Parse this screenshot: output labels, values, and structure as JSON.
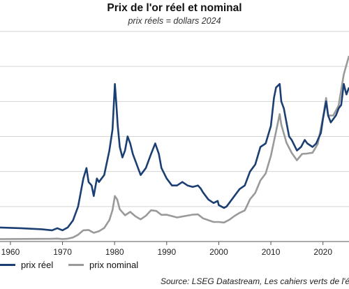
{
  "chart_data": {
    "type": "line",
    "title": "Prix de l'or réel et nominal",
    "subtitle": "prix réels = dollars 2024",
    "source": "Source: LSEG Datastream, Les cahiers verts de l'é",
    "xlim": [
      1958,
      2025
    ],
    "ylim": [
      0,
      3000
    ],
    "grid": true,
    "legend_position": "bottom-left",
    "xticks": [
      1960,
      1970,
      1980,
      1990,
      2000,
      2010,
      2020
    ],
    "series": [
      {
        "name": "prix réel",
        "color": "#1b3f73",
        "x": [
          1958,
          1962,
          1966,
          1968,
          1969,
          1970,
          1971,
          1972,
          1973,
          1974,
          1974.6,
          1975,
          1975.6,
          1976,
          1976.6,
          1977,
          1978,
          1979,
          1979.6,
          1980.05,
          1980.3,
          1980.6,
          1981,
          1981.5,
          1982,
          1982.5,
          1983,
          1983.5,
          1984,
          1985,
          1986,
          1987,
          1987.8,
          1988.5,
          1989,
          1990,
          1991,
          1992,
          1993,
          1994,
          1995,
          1996,
          1996.5,
          1997,
          1998,
          1999,
          1999.8,
          2000,
          2001,
          2001.5,
          2002,
          2003,
          2004,
          2005,
          2006,
          2007,
          2008,
          2009,
          2010,
          2010.6,
          2011,
          2011.7,
          2012,
          2012.5,
          2013,
          2013.5,
          2014,
          2015,
          2015.8,
          2016.5,
          2017,
          2018,
          2018.7,
          2019,
          2019.6,
          2020,
          2020.6,
          2021,
          2021.5,
          2022,
          2022.5,
          2023,
          2023.5,
          2024,
          2024.5,
          2025
        ],
        "y": [
          200,
          190,
          175,
          160,
          190,
          160,
          200,
          300,
          500,
          900,
          1050,
          850,
          800,
          650,
          900,
          850,
          950,
          1300,
          1600,
          2250,
          2000,
          1650,
          1350,
          1200,
          1300,
          1500,
          1400,
          1250,
          1150,
          950,
          1050,
          1250,
          1400,
          1250,
          1050,
          900,
          800,
          800,
          850,
          800,
          780,
          800,
          760,
          700,
          600,
          550,
          580,
          520,
          480,
          500,
          550,
          650,
          750,
          800,
          1000,
          1100,
          1350,
          1400,
          1650,
          2050,
          2200,
          2250,
          2000,
          1900,
          1700,
          1500,
          1450,
          1300,
          1350,
          1450,
          1400,
          1350,
          1400,
          1450,
          1550,
          1750,
          2000,
          1800,
          1700,
          1750,
          1800,
          1900,
          1950,
          2250,
          2100,
          2200
        ]
      },
      {
        "name": "prix nominal",
        "color": "#9a9a9a",
        "x": [
          1958,
          1968,
          1969,
          1970,
          1971,
          1972,
          1973,
          1974,
          1975,
          1976,
          1977,
          1978,
          1979,
          1979.6,
          1980.05,
          1980.5,
          1981,
          1982,
          1983,
          1984,
          1985,
          1986,
          1987,
          1988,
          1989,
          1990,
          1992,
          1995,
          1996,
          1997,
          1999,
          2000,
          2001,
          2002,
          2003,
          2004,
          2005,
          2006,
          2007,
          2008,
          2009,
          2010,
          2011,
          2011.7,
          2012,
          2013,
          2014,
          2015,
          2016,
          2017,
          2018,
          2019,
          2020,
          2020.6,
          2021,
          2022,
          2023,
          2024,
          2025
        ],
        "y": [
          35,
          39,
          42,
          36,
          41,
          58,
          97,
          160,
          165,
          125,
          148,
          193,
          306,
          450,
          650,
          600,
          460,
          375,
          424,
          360,
          317,
          368,
          447,
          437,
          381,
          383,
          344,
          384,
          388,
          331,
          279,
          279,
          271,
          310,
          364,
          410,
          445,
          604,
          695,
          872,
          972,
          1225,
          1572,
          1820,
          1669,
          1411,
          1266,
          1160,
          1251,
          1257,
          1268,
          1393,
          1770,
          2050,
          1799,
          1800,
          1943,
          2386,
          2650
        ]
      }
    ]
  }
}
